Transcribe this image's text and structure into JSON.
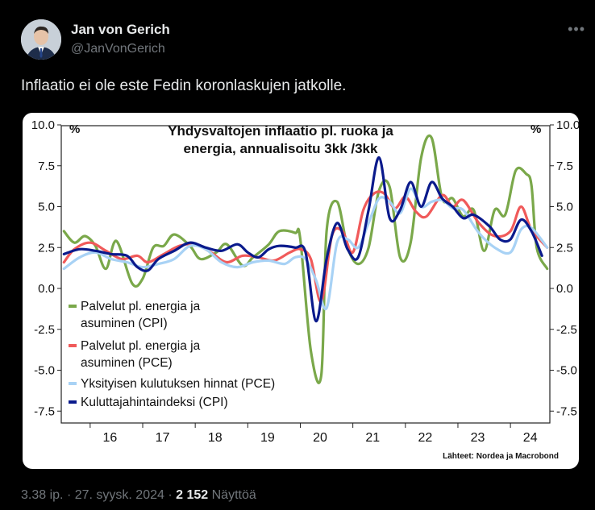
{
  "tweet": {
    "author_name": "Jan von Gerich",
    "author_handle": "@JanVonGerich",
    "text": "Inflaatio ei ole este Fedin koronlaskujen jatkolle.",
    "more_icon": "more-icon",
    "footer": {
      "time": "3.38 ip.",
      "date": "27. syysk. 2024",
      "views_count": "2 152",
      "views_label": "Näyttöä"
    }
  },
  "chart_data": {
    "type": "line",
    "title_line1": "Yhdysvaltojen inflaatio pl. ruoka ja",
    "title_line2": "energia, annualisoitu 3kk /3kk",
    "unit_left": "%",
    "unit_right": "%",
    "source": "Lähteet: Nordea ja Macrobond",
    "ylim": [
      -7.5,
      10.0
    ],
    "y_ticks": [
      "10.0",
      "7.5",
      "5.0",
      "2.5",
      "0.0",
      "-2.5",
      "-5.0",
      "-7.5"
    ],
    "x_tick_labels": [
      "16",
      "17",
      "18",
      "19",
      "20",
      "21",
      "22",
      "23",
      "24"
    ],
    "grid": false,
    "series": [
      {
        "name_line1": "Palvelut pl. energia ja",
        "name_line2": "asuminen (CPI)",
        "color": "#7aa84a",
        "x": [
          2015.5,
          2015.7,
          2015.9,
          2016.1,
          2016.3,
          2016.5,
          2016.8,
          2017.0,
          2017.2,
          2017.4,
          2017.6,
          2017.9,
          2018.1,
          2018.4,
          2018.6,
          2018.9,
          2019.1,
          2019.4,
          2019.6,
          2019.9,
          2020.0,
          2020.2,
          2020.4,
          2020.5,
          2020.7,
          2020.9,
          2021.1,
          2021.3,
          2021.5,
          2021.7,
          2021.9,
          2022.1,
          2022.3,
          2022.5,
          2022.7,
          2022.9,
          2023.1,
          2023.3,
          2023.5,
          2023.7,
          2023.9,
          2024.1,
          2024.3,
          2024.4,
          2024.5,
          2024.7
        ],
        "y": [
          3.5,
          2.8,
          3.2,
          2.6,
          1.2,
          2.9,
          0.3,
          0.6,
          2.5,
          2.6,
          3.3,
          2.6,
          1.8,
          2.2,
          2.7,
          1.4,
          1.9,
          2.7,
          3.5,
          3.4,
          3.0,
          -3.8,
          -5.3,
          3.5,
          5.3,
          2.5,
          1.5,
          2.5,
          6.0,
          6.2,
          1.9,
          2.8,
          8.0,
          9.2,
          5.5,
          5.5,
          4.4,
          4.8,
          2.3,
          4.8,
          4.5,
          7.2,
          7.0,
          6.3,
          2.5,
          1.2
        ]
      },
      {
        "name_line1": "Palvelut pl. energia ja",
        "name_line2": "asuminen (PCE)",
        "color": "#f05a5a",
        "x": [
          2015.5,
          2015.7,
          2016.0,
          2016.3,
          2016.6,
          2016.9,
          2017.1,
          2017.4,
          2017.7,
          2018.0,
          2018.3,
          2018.6,
          2018.9,
          2019.2,
          2019.5,
          2019.8,
          2020.0,
          2020.2,
          2020.4,
          2020.6,
          2020.8,
          2021.0,
          2021.2,
          2021.4,
          2021.6,
          2021.8,
          2022.0,
          2022.2,
          2022.4,
          2022.7,
          2022.9,
          2023.1,
          2023.4,
          2023.7,
          2024.0,
          2024.2,
          2024.4,
          2024.7
        ],
        "y": [
          1.6,
          2.4,
          2.8,
          2.3,
          1.8,
          2.0,
          1.6,
          2.1,
          2.6,
          2.7,
          2.2,
          1.6,
          2.0,
          1.9,
          1.7,
          2.2,
          2.4,
          1.8,
          -0.8,
          3.2,
          3.5,
          2.2,
          4.8,
          5.8,
          5.8,
          4.9,
          5.6,
          4.7,
          4.4,
          5.7,
          5.0,
          5.4,
          4.0,
          3.2,
          3.5,
          5.0,
          3.6,
          2.5
        ]
      },
      {
        "name_line1": "Yksityisen kulutuksen hinnat (PCE)",
        "name_line2": "",
        "color": "#a8d2f5",
        "x": [
          2015.5,
          2015.8,
          2016.1,
          2016.4,
          2016.7,
          2017.0,
          2017.3,
          2017.6,
          2017.9,
          2018.2,
          2018.5,
          2018.8,
          2019.1,
          2019.4,
          2019.7,
          2019.9,
          2020.1,
          2020.3,
          2020.5,
          2020.7,
          2020.9,
          2021.1,
          2021.3,
          2021.5,
          2021.7,
          2021.9,
          2022.1,
          2022.3,
          2022.5,
          2022.7,
          2022.9,
          2023.1,
          2023.4,
          2023.7,
          2024.0,
          2024.2,
          2024.4,
          2024.7
        ],
        "y": [
          1.2,
          1.9,
          2.2,
          1.8,
          1.6,
          1.3,
          1.5,
          1.8,
          2.6,
          2.4,
          1.6,
          1.3,
          1.6,
          1.7,
          1.5,
          1.9,
          1.8,
          0.5,
          -1.2,
          2.8,
          3.0,
          2.5,
          4.0,
          5.5,
          5.3,
          4.6,
          6.1,
          5.0,
          5.3,
          5.4,
          4.9,
          4.8,
          3.4,
          2.5,
          2.2,
          3.6,
          3.7,
          2.5
        ]
      },
      {
        "name_line1": "Kuluttajahintaindeksi (CPI)",
        "name_line2": "",
        "color": "#0a1a8c",
        "x": [
          2015.5,
          2015.8,
          2016.1,
          2016.4,
          2016.7,
          2016.9,
          2017.1,
          2017.3,
          2017.6,
          2017.9,
          2018.2,
          2018.5,
          2018.8,
          2019.0,
          2019.2,
          2019.4,
          2019.6,
          2019.9,
          2020.1,
          2020.3,
          2020.5,
          2020.7,
          2020.9,
          2021.1,
          2021.3,
          2021.5,
          2021.7,
          2021.9,
          2022.1,
          2022.3,
          2022.5,
          2022.7,
          2022.9,
          2023.1,
          2023.3,
          2023.6,
          2023.8,
          2024.0,
          2024.2,
          2024.4,
          2024.6
        ],
        "y": [
          2.1,
          2.4,
          2.3,
          2.1,
          2.0,
          1.3,
          1.1,
          1.8,
          2.3,
          2.8,
          2.5,
          2.3,
          2.7,
          2.2,
          1.9,
          2.4,
          2.6,
          2.5,
          2.2,
          -2.0,
          1.8,
          4.0,
          2.4,
          1.9,
          4.8,
          8.0,
          4.3,
          4.8,
          6.5,
          5.0,
          6.5,
          5.5,
          5.0,
          4.3,
          4.5,
          3.8,
          3.0,
          3.0,
          4.2,
          3.5,
          2.0
        ]
      }
    ]
  }
}
